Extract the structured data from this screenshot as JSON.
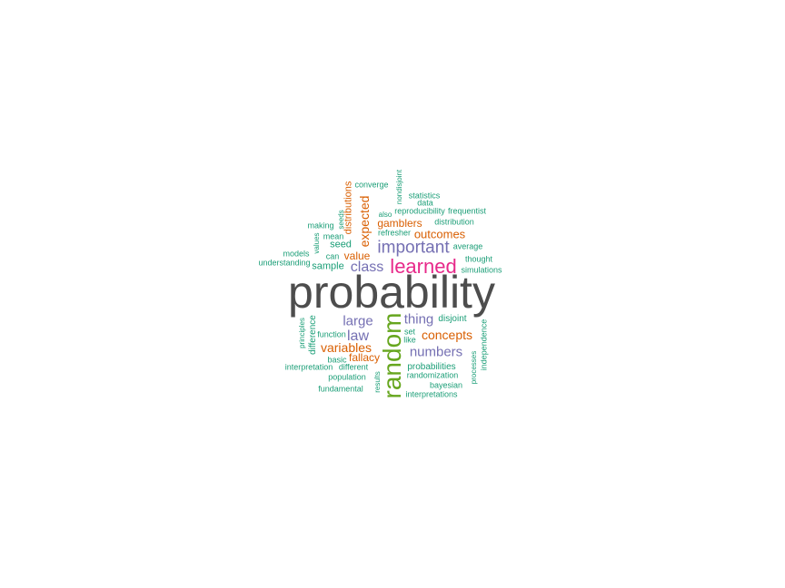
{
  "words": {
    "probability": "probability",
    "random": "random",
    "learned": "learned",
    "important": "important",
    "class": "class",
    "expected": "expected",
    "distributions": "distributions",
    "outcomes": "outcomes",
    "gamblers": "gamblers",
    "value": "value",
    "large": "large",
    "law": "law",
    "variables": "variables",
    "fallacy": "fallacy",
    "thing": "thing",
    "concepts": "concepts",
    "numbers": "numbers",
    "seed": "seed",
    "sample": "sample",
    "converge": "converge",
    "nondisjoint": "nondisjoint",
    "statistics": "statistics",
    "data": "data",
    "also": "also",
    "reproducibility": "reproducibility",
    "frequentist": "frequentist",
    "distribution": "distribution",
    "making": "making",
    "seeds": "seeds",
    "refresher": "refresher",
    "mean": "mean",
    "values": "values",
    "average": "average",
    "models": "models",
    "can": "can",
    "thought": "thought",
    "understanding": "understanding",
    "simulations": "simulations",
    "principles": "principles",
    "difference": "difference",
    "disjoint": "disjoint",
    "function": "function",
    "set": "set",
    "like": "like",
    "independence": "independence",
    "basic": "basic",
    "interpretation": "interpretation",
    "different": "different",
    "probabilities": "probabilities",
    "processes": "processes",
    "population": "population",
    "randomization": "randomization",
    "results": "results",
    "bayesian": "bayesian",
    "fundamental": "fundamental",
    "interpretations": "interpretations"
  }
}
